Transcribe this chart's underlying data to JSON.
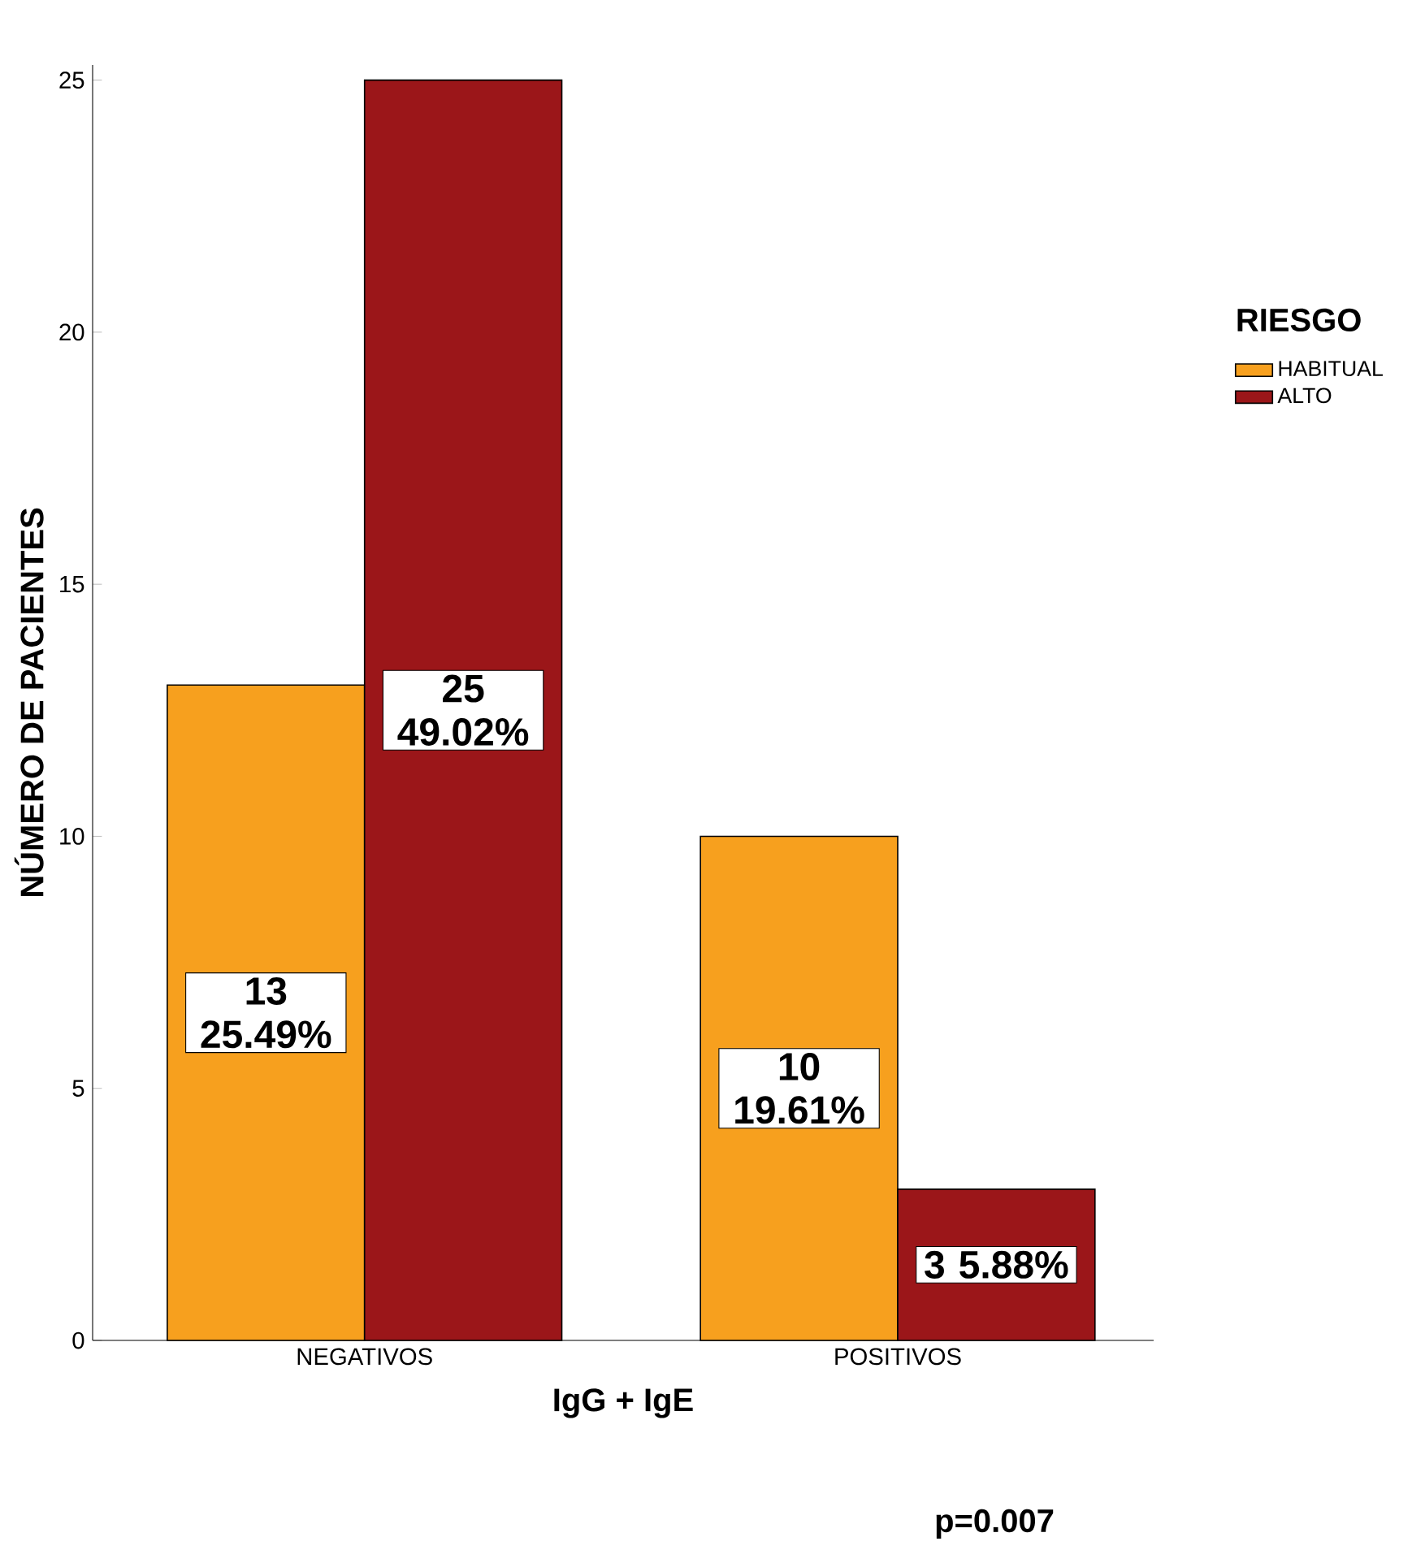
{
  "chart_data": {
    "type": "bar",
    "xlabel": "IgG + IgE",
    "ylabel": "NÚMERO DE PACIENTES",
    "legend_title": "RIESGO",
    "legend": "right",
    "categories": [
      "NEGATIVOS",
      "POSITIVOS"
    ],
    "series": [
      {
        "name": "HABITUAL",
        "color": "#f7a01e",
        "values": [
          13,
          10
        ],
        "value_labels": [
          "13 25.49%",
          "10 19.61%"
        ]
      },
      {
        "name": "ALTO",
        "color": "#9b1619",
        "values": [
          25,
          3
        ],
        "value_labels": [
          "25 49.02%",
          "3 5.88%"
        ]
      }
    ],
    "ylim": [
      0,
      25.3
    ],
    "yticks": [
      0,
      5,
      10,
      15,
      20,
      25
    ],
    "grid": false,
    "annotations": [
      "p=0.007"
    ]
  }
}
